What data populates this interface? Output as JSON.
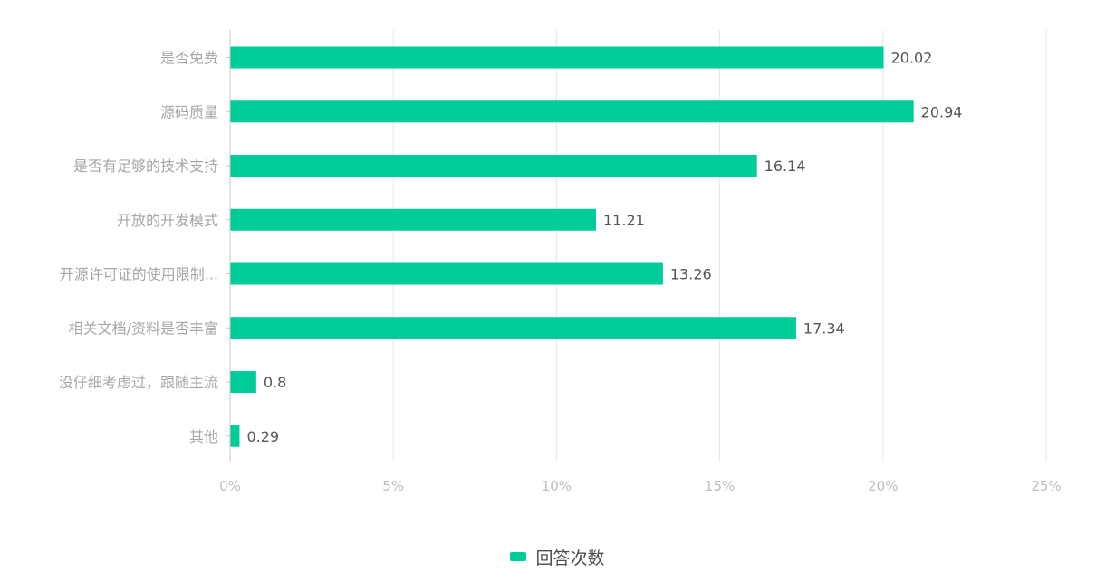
{
  "colors": {
    "bar": "#00CC99",
    "grid": "#e6e6e6",
    "axis": "#c8c8c8",
    "category_text": "#a6a6a6",
    "tick_text": "#bdbdbd",
    "value_text": "#555555"
  },
  "chart_data": {
    "type": "bar",
    "orientation": "horizontal",
    "categories": [
      "是否免费",
      "源码质量",
      "是否有足够的技术支持",
      "开放的开发模式",
      "开源许可证的使用限制...",
      "相关文档/资料是否丰富",
      "没仔细考虑过，跟随主流",
      "其他"
    ],
    "series": [
      {
        "name": "回答次数",
        "values": [
          20.02,
          20.94,
          16.14,
          11.21,
          13.26,
          17.34,
          0.8,
          0.29
        ],
        "value_labels": [
          "20.02",
          "20.94",
          "16.14",
          "11.21",
          "13.26",
          "17.34",
          "0.8",
          "0.29"
        ]
      }
    ],
    "xlim": [
      0,
      25
    ],
    "xticks": [
      0,
      5,
      10,
      15,
      20,
      25
    ],
    "xtick_labels": [
      "0%",
      "5%",
      "10%",
      "15%",
      "20%",
      "25%"
    ],
    "grid": true,
    "legend_position": "bottom-center",
    "title": "",
    "xlabel": "",
    "ylabel": ""
  }
}
